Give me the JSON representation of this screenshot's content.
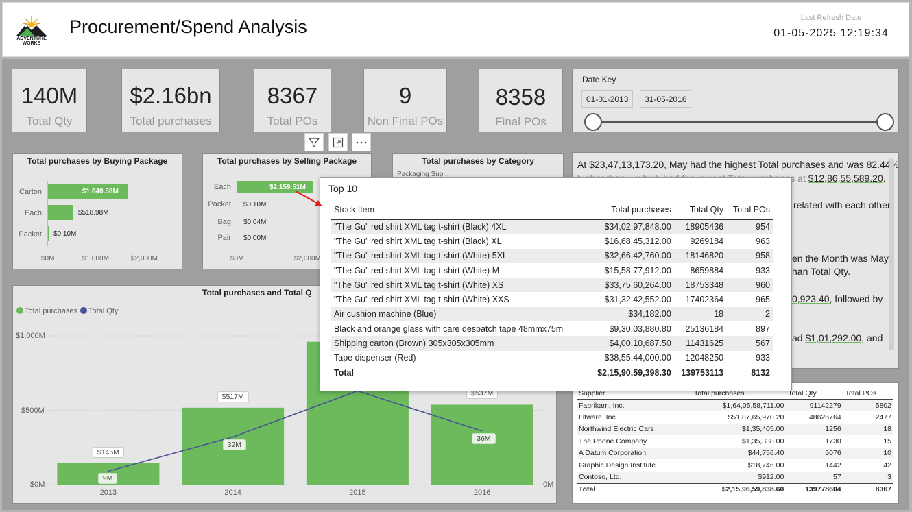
{
  "header": {
    "logo_line1": "ADVENTURE",
    "logo_line2": "WORKS",
    "title": "Procurement/Spend Analysis",
    "refresh_label": "Last Refresh Date",
    "refresh_value": "01-05-2025 12:19:34"
  },
  "kpis": [
    {
      "value": "140M",
      "label": "Total Qty"
    },
    {
      "value": "$2.16bn",
      "label": "Total purchases"
    },
    {
      "value": "8367",
      "label": "Total POs"
    },
    {
      "value": "9",
      "label": "Non Final POs"
    },
    {
      "value": "8358",
      "label": "Final POs"
    }
  ],
  "slicer": {
    "title": "Date Key",
    "start": "01-01-2013",
    "end": "31-05-2016"
  },
  "buying_package": {
    "title": "Total purchases by Buying Package",
    "rows": [
      {
        "label": "Carton",
        "value": "$1,640.58M",
        "amount": 1640.58
      },
      {
        "label": "Each",
        "value": "$518.98M",
        "amount": 518.98
      },
      {
        "label": "Packet",
        "value": "$0.10M",
        "amount": 0.1
      }
    ],
    "ticks": [
      "$0M",
      "$1,000M",
      "$2,000M"
    ]
  },
  "selling_package": {
    "title": "Total purchases by Selling Package",
    "rows": [
      {
        "label": "Each",
        "value": "$2,159.51M",
        "amount": 2159.51
      },
      {
        "label": "Packet",
        "value": "$0.10M",
        "amount": 0.1
      },
      {
        "label": "Bag",
        "value": "$0.04M",
        "amount": 0.04
      },
      {
        "label": "Pair",
        "value": "$0.00M",
        "amount": 0.0
      }
    ],
    "ticks": [
      "$0M",
      "$2,000M"
    ]
  },
  "category": {
    "title": "Total purchases by Category",
    "first_row": "Packaging Sup..."
  },
  "narrative": {
    "l1a": "At ",
    "l1b": "$23,47,13,173.20",
    "l1c": ", ",
    "l1d": "May",
    "l1e": " had the highest Total purchases and was ",
    "l1f": "82.44%",
    "l2a": "higher than ",
    "l2b": "...",
    "l2c": "which had the lowest Total purchases at ",
    "l2d": "$12,86,55,589.20",
    "l2e": ".",
    "l3": "related with each other.",
    "l4a": "en the Month was ",
    "l4b": "May",
    "l4c": ",",
    "l5a": "han ",
    "l5b": "Total Qty",
    "l5c": ".",
    "l6a": "0,923.40",
    "l6b": ", followed by",
    "l7a": "ad ",
    "l7b": "$1,01,292.00",
    "l7c": ", and"
  },
  "supplier_table": {
    "columns": [
      "Supplier",
      "Total purchases",
      "Total Qty",
      "Total POs"
    ],
    "rows": [
      [
        "Fabrikam, Inc.",
        "$1,64,05,58,711.00",
        "91142279",
        "5802"
      ],
      [
        "Litware, Inc.",
        "$51,87,65,970.20",
        "48626764",
        "2477"
      ],
      [
        "Northwind Electric Cars",
        "$1,35,405.00",
        "1256",
        "18"
      ],
      [
        "The Phone Company",
        "$1,35,338.00",
        "1730",
        "15"
      ],
      [
        "A Datum Corporation",
        "$44,756.40",
        "5076",
        "10"
      ],
      [
        "Graphic Design Institute",
        "$18,746.00",
        "1442",
        "42"
      ],
      [
        "Contoso, Ltd.",
        "$912.00",
        "57",
        "3"
      ]
    ],
    "total": [
      "Total",
      "$2,15,96,59,838.60",
      "139778604",
      "8367"
    ]
  },
  "combo_chart": {
    "title": "Total purchases and Total Qty by Year",
    "title_visible": "Total purchases and Total Q",
    "legend": [
      {
        "name": "Total purchases",
        "color": "#6cba5c"
      },
      {
        "name": "Total Qty",
        "color": "#4a5496"
      }
    ],
    "y_ticks": [
      "$1,000M",
      "$500M",
      "$0M"
    ],
    "y2_tick": "0M",
    "purchase_labels": [
      "$145M",
      "$517M",
      "",
      "$537M"
    ],
    "qty_labels": [
      "9M",
      "32M",
      "",
      "36M"
    ]
  },
  "chart_data": {
    "type": "bar",
    "categories": [
      "2013",
      "2014",
      "2015",
      "2016"
    ],
    "series": [
      {
        "name": "Total purchases",
        "values": [
          145,
          517,
          960,
          537
        ]
      },
      {
        "name": "Total Qty",
        "values": [
          9,
          32,
          63,
          36
        ]
      }
    ],
    "title": "Total purchases and Total Q",
    "ylim": [
      0,
      1000
    ],
    "y2lim": [
      0,
      100
    ],
    "grid": true,
    "legend": "top-left"
  },
  "tooltip": {
    "title": "Top 10",
    "columns": [
      "Stock Item",
      "Total purchases",
      "Total Qty",
      "Total POs"
    ],
    "rows": [
      [
        "\"The Gu\" red shirt XML tag t-shirt (Black) 4XL",
        "$34,02,97,848.00",
        "18905436",
        "954"
      ],
      [
        "\"The Gu\" red shirt XML tag t-shirt (Black) XL",
        "$16,68,45,312.00",
        "9269184",
        "963"
      ],
      [
        "\"The Gu\" red shirt XML tag t-shirt (White) 5XL",
        "$32,66,42,760.00",
        "18146820",
        "958"
      ],
      [
        "\"The Gu\" red shirt XML tag t-shirt (White) M",
        "$15,58,77,912.00",
        "8659884",
        "933"
      ],
      [
        "\"The Gu\" red shirt XML tag t-shirt (White) XS",
        "$33,75,60,264.00",
        "18753348",
        "960"
      ],
      [
        "\"The Gu\" red shirt XML tag t-shirt (White) XXS",
        "$31,32,42,552.00",
        "17402364",
        "965"
      ],
      [
        "Air cushion machine (Blue)",
        "$34,182.00",
        "18",
        "2"
      ],
      [
        "Black and orange glass with care despatch tape 48mmx75m",
        "$9,30,03,880.80",
        "25136184",
        "897"
      ],
      [
        "Shipping carton (Brown) 305x305x305mm",
        "$4,00,10,687.50",
        "11431625",
        "567"
      ],
      [
        "Tape dispenser (Red)",
        "$38,55,44,000.00",
        "12048250",
        "933"
      ]
    ],
    "total": [
      "Total",
      "$2,15,90,59,398.30",
      "139753113",
      "8132"
    ]
  },
  "visual_header": {
    "filter_icon": "filter-icon",
    "focus_icon": "focus-mode-icon",
    "more_icon": "more-options-icon"
  },
  "colors": {
    "accent_green": "#6cba5c",
    "line_blue": "#4a5496",
    "arrow_red": "#e0201b"
  }
}
